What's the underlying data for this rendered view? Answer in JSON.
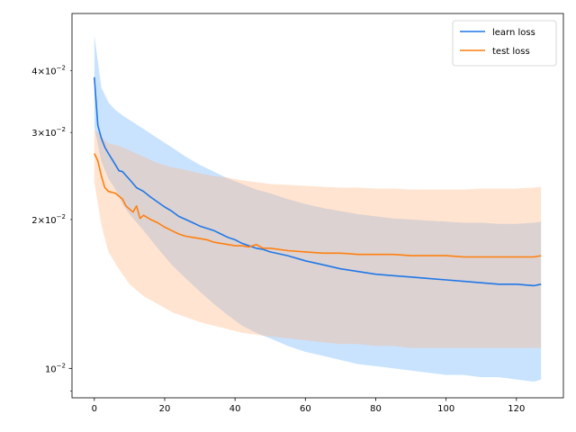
{
  "chart_data": {
    "type": "line",
    "title": "",
    "xlabel": "",
    "ylabel": "",
    "yscale": "log",
    "xlim": [
      -6.35,
      133.35
    ],
    "ylim": [
      0.00872,
      0.0522
    ],
    "grid": false,
    "legend_position": "top-right",
    "x_ticks": [
      0,
      20,
      40,
      60,
      80,
      100,
      120
    ],
    "x_tick_labels": [
      "0",
      "20",
      "40",
      "60",
      "80",
      "100",
      "120"
    ],
    "y_major_ticks": [
      0.01
    ],
    "y_major_tick_labels": [
      "10^{-2}"
    ],
    "y_minor_ticks": [
      0.009,
      0.02,
      0.03,
      0.04
    ],
    "y_labeled_minor_ticks": [
      {
        "value": 0.02,
        "mantissa": "2",
        "base": "10",
        "exp": "−2"
      },
      {
        "value": 0.03,
        "mantissa": "3",
        "base": "10",
        "exp": "−2"
      },
      {
        "value": 0.04,
        "mantissa": "4",
        "base": "10",
        "exp": "−2"
      }
    ],
    "series": [
      {
        "name": "learn loss",
        "color": "#1f77e8",
        "band_color": "#79b8ff",
        "band_opacity": 0.4,
        "points": [
          [
            0,
            0.0388
          ],
          [
            1,
            0.031
          ],
          [
            2,
            0.0292
          ],
          [
            3,
            0.028
          ],
          [
            4,
            0.0272
          ],
          [
            5,
            0.0265
          ],
          [
            6,
            0.0258
          ],
          [
            7,
            0.0251
          ],
          [
            8,
            0.025
          ],
          [
            10,
            0.0241
          ],
          [
            12,
            0.0232
          ],
          [
            14,
            0.0228
          ],
          [
            16,
            0.0222
          ],
          [
            18,
            0.0217
          ],
          [
            20,
            0.0212
          ],
          [
            22,
            0.0208
          ],
          [
            24,
            0.0203
          ],
          [
            26,
            0.02
          ],
          [
            28,
            0.0197
          ],
          [
            30,
            0.0194
          ],
          [
            32,
            0.0192
          ],
          [
            34,
            0.019
          ],
          [
            36,
            0.0187
          ],
          [
            38,
            0.0184
          ],
          [
            40,
            0.0182
          ],
          [
            42,
            0.0179
          ],
          [
            44,
            0.0177
          ],
          [
            46,
            0.0175
          ],
          [
            48,
            0.0174
          ],
          [
            50,
            0.0172
          ],
          [
            55,
            0.0169
          ],
          [
            60,
            0.0165
          ],
          [
            65,
            0.0162
          ],
          [
            70,
            0.0159
          ],
          [
            75,
            0.0157
          ],
          [
            80,
            0.0155
          ],
          [
            85,
            0.0154
          ],
          [
            90,
            0.0153
          ],
          [
            95,
            0.0152
          ],
          [
            100,
            0.0151
          ],
          [
            105,
            0.015
          ],
          [
            110,
            0.0149
          ],
          [
            115,
            0.0148
          ],
          [
            120,
            0.0148
          ],
          [
            125,
            0.0147
          ],
          [
            127,
            0.0148
          ]
        ],
        "band_upper": [
          [
            0,
            0.0472
          ],
          [
            2,
            0.037
          ],
          [
            4,
            0.0345
          ],
          [
            6,
            0.0333
          ],
          [
            8,
            0.0325
          ],
          [
            10,
            0.0318
          ],
          [
            14,
            0.0305
          ],
          [
            18,
            0.0292
          ],
          [
            22,
            0.028
          ],
          [
            26,
            0.0268
          ],
          [
            30,
            0.0258
          ],
          [
            34,
            0.025
          ],
          [
            38,
            0.0242
          ],
          [
            42,
            0.0236
          ],
          [
            46,
            0.023
          ],
          [
            50,
            0.0226
          ],
          [
            55,
            0.022
          ],
          [
            60,
            0.0215
          ],
          [
            65,
            0.0211
          ],
          [
            70,
            0.0208
          ],
          [
            75,
            0.0205
          ],
          [
            80,
            0.0203
          ],
          [
            85,
            0.0201
          ],
          [
            90,
            0.02
          ],
          [
            95,
            0.0199
          ],
          [
            100,
            0.0198
          ],
          [
            105,
            0.0197
          ],
          [
            110,
            0.0197
          ],
          [
            115,
            0.0196
          ],
          [
            120,
            0.0196
          ],
          [
            125,
            0.0197
          ],
          [
            127,
            0.0198
          ]
        ],
        "band_lower": [
          [
            0,
            0.0308
          ],
          [
            2,
            0.0262
          ],
          [
            4,
            0.0242
          ],
          [
            6,
            0.023
          ],
          [
            8,
            0.0215
          ],
          [
            10,
            0.0205
          ],
          [
            14,
            0.019
          ],
          [
            18,
            0.0175
          ],
          [
            22,
            0.0162
          ],
          [
            26,
            0.0152
          ],
          [
            30,
            0.0143
          ],
          [
            34,
            0.0135
          ],
          [
            38,
            0.0128
          ],
          [
            42,
            0.0122
          ],
          [
            46,
            0.0118
          ],
          [
            50,
            0.0115
          ],
          [
            55,
            0.0111
          ],
          [
            60,
            0.0108
          ],
          [
            65,
            0.0106
          ],
          [
            70,
            0.0104
          ],
          [
            75,
            0.0102
          ],
          [
            80,
            0.0101
          ],
          [
            85,
            0.01
          ],
          [
            90,
            0.0099
          ],
          [
            95,
            0.0098
          ],
          [
            100,
            0.0097
          ],
          [
            105,
            0.0097
          ],
          [
            110,
            0.0096
          ],
          [
            115,
            0.0096
          ],
          [
            120,
            0.0095
          ],
          [
            125,
            0.0094
          ],
          [
            127,
            0.0095
          ]
        ]
      },
      {
        "name": "test loss",
        "color": "#ff7f0e",
        "band_color": "#ffb27a",
        "band_opacity": 0.35,
        "points": [
          [
            0,
            0.0272
          ],
          [
            1,
            0.0263
          ],
          [
            2,
            0.0245
          ],
          [
            3,
            0.0232
          ],
          [
            4,
            0.0228
          ],
          [
            6,
            0.0226
          ],
          [
            8,
            0.022
          ],
          [
            9,
            0.0213
          ],
          [
            10,
            0.021
          ],
          [
            11,
            0.0207
          ],
          [
            12,
            0.0213
          ],
          [
            13,
            0.0201
          ],
          [
            14,
            0.0204
          ],
          [
            16,
            0.02
          ],
          [
            18,
            0.0197
          ],
          [
            20,
            0.0193
          ],
          [
            22,
            0.019
          ],
          [
            24,
            0.0187
          ],
          [
            26,
            0.0185
          ],
          [
            28,
            0.0184
          ],
          [
            30,
            0.0183
          ],
          [
            32,
            0.0182
          ],
          [
            34,
            0.018
          ],
          [
            36,
            0.0179
          ],
          [
            38,
            0.0178
          ],
          [
            40,
            0.0177
          ],
          [
            42,
            0.0177
          ],
          [
            44,
            0.0176
          ],
          [
            46,
            0.0178
          ],
          [
            48,
            0.0175
          ],
          [
            50,
            0.0175
          ],
          [
            55,
            0.0173
          ],
          [
            60,
            0.0172
          ],
          [
            65,
            0.0171
          ],
          [
            70,
            0.0171
          ],
          [
            75,
            0.017
          ],
          [
            80,
            0.017
          ],
          [
            85,
            0.017
          ],
          [
            90,
            0.0169
          ],
          [
            95,
            0.0169
          ],
          [
            100,
            0.0169
          ],
          [
            105,
            0.0168
          ],
          [
            110,
            0.0168
          ],
          [
            115,
            0.0168
          ],
          [
            120,
            0.0168
          ],
          [
            125,
            0.0168
          ],
          [
            127,
            0.0169
          ]
        ],
        "band_upper": [
          [
            0,
            0.0305
          ],
          [
            2,
            0.0295
          ],
          [
            4,
            0.0285
          ],
          [
            6,
            0.0283
          ],
          [
            8,
            0.028
          ],
          [
            10,
            0.0276
          ],
          [
            14,
            0.0268
          ],
          [
            18,
            0.026
          ],
          [
            22,
            0.0255
          ],
          [
            26,
            0.0252
          ],
          [
            30,
            0.0248
          ],
          [
            34,
            0.0245
          ],
          [
            38,
            0.0243
          ],
          [
            42,
            0.024
          ],
          [
            46,
            0.0238
          ],
          [
            50,
            0.0236
          ],
          [
            55,
            0.0235
          ],
          [
            60,
            0.0234
          ],
          [
            65,
            0.0233
          ],
          [
            70,
            0.0232
          ],
          [
            75,
            0.0232
          ],
          [
            80,
            0.0231
          ],
          [
            85,
            0.0231
          ],
          [
            90,
            0.023
          ],
          [
            95,
            0.023
          ],
          [
            100,
            0.023
          ],
          [
            105,
            0.023
          ],
          [
            110,
            0.0231
          ],
          [
            115,
            0.0231
          ],
          [
            120,
            0.0231
          ],
          [
            125,
            0.0232
          ],
          [
            127,
            0.0233
          ]
        ],
        "band_lower": [
          [
            0,
            0.0238
          ],
          [
            2,
            0.0195
          ],
          [
            4,
            0.0172
          ],
          [
            6,
            0.0163
          ],
          [
            8,
            0.0155
          ],
          [
            10,
            0.0148
          ],
          [
            14,
            0.014
          ],
          [
            18,
            0.0135
          ],
          [
            22,
            0.013
          ],
          [
            26,
            0.0127
          ],
          [
            30,
            0.0124
          ],
          [
            34,
            0.0122
          ],
          [
            38,
            0.012
          ],
          [
            42,
            0.0118
          ],
          [
            46,
            0.0117
          ],
          [
            50,
            0.0116
          ],
          [
            55,
            0.0115
          ],
          [
            60,
            0.0114
          ],
          [
            65,
            0.0113
          ],
          [
            70,
            0.0112
          ],
          [
            75,
            0.0112
          ],
          [
            80,
            0.0111
          ],
          [
            85,
            0.0111
          ],
          [
            90,
            0.011
          ],
          [
            95,
            0.011
          ],
          [
            100,
            0.011
          ],
          [
            105,
            0.011
          ],
          [
            110,
            0.011
          ],
          [
            115,
            0.011
          ],
          [
            120,
            0.011
          ],
          [
            125,
            0.011
          ],
          [
            127,
            0.011
          ]
        ]
      }
    ]
  }
}
